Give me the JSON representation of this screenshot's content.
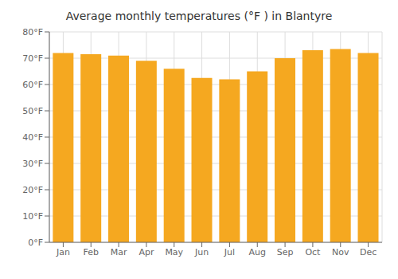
{
  "chart_data": {
    "type": "bar",
    "title": "Average monthly temperatures (°F ) in Blantyre",
    "categories": [
      "Jan",
      "Feb",
      "Mar",
      "Apr",
      "May",
      "Jun",
      "Jul",
      "Aug",
      "Sep",
      "Oct",
      "Nov",
      "Dec"
    ],
    "values": [
      72,
      71.5,
      71,
      69,
      66,
      62.5,
      62,
      65,
      70,
      73,
      73.5,
      72
    ],
    "color": "#F5A820",
    "ylim": [
      0,
      80
    ],
    "yticks": [
      {
        "value": 0,
        "label": "0°F"
      },
      {
        "value": 10,
        "label": "10°F"
      },
      {
        "value": 20,
        "label": "20°F"
      },
      {
        "value": 30,
        "label": "30°F"
      },
      {
        "value": 40,
        "label": "40°F"
      },
      {
        "value": 50,
        "label": "50°F"
      },
      {
        "value": 60,
        "label": "60°F"
      },
      {
        "value": 70,
        "label": "70°F"
      },
      {
        "value": 80,
        "label": "80°F"
      }
    ],
    "grid": true
  }
}
